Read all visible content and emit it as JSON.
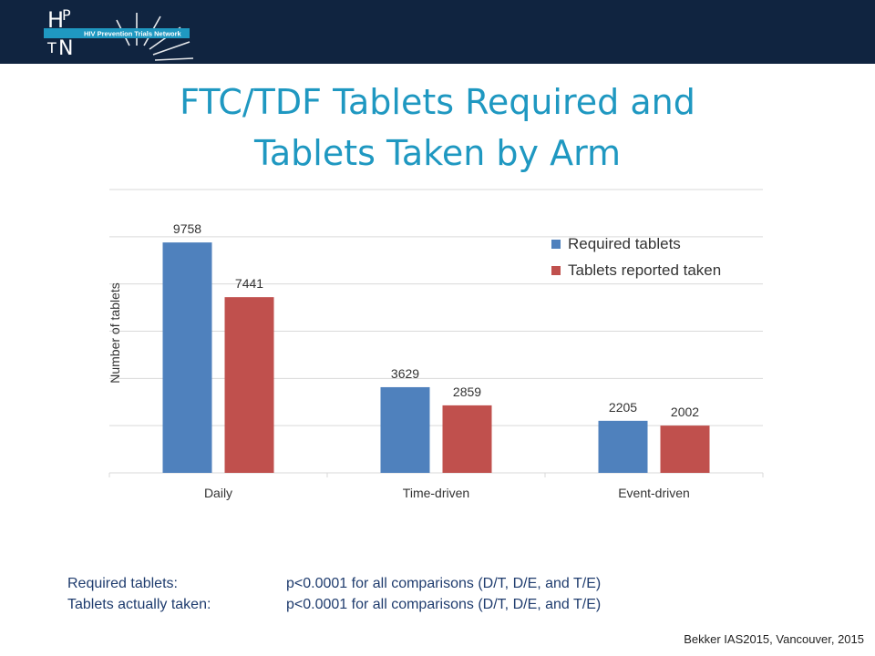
{
  "header": {
    "logo_letters": [
      "H",
      "P",
      "T",
      "N"
    ],
    "org_name": "HIV Prevention Trials Network"
  },
  "title_lines": [
    "FTC/TDF Tablets Required and",
    "Tablets Taken by Arm"
  ],
  "colors": {
    "header_bg": "#102440",
    "title": "#1f98c1",
    "required": "#4f81bd",
    "taken": "#c0504d"
  },
  "chart_data": {
    "type": "bar",
    "categories": [
      "Daily",
      "Time-driven",
      "Event-driven"
    ],
    "series": [
      {
        "name": "Required tablets",
        "values": [
          9758,
          3629,
          2205
        ]
      },
      {
        "name": "Tablets reported taken",
        "values": [
          7441,
          2859,
          2002
        ]
      }
    ],
    "ylabel": "Number of tablets",
    "ylim": [
      0,
      12000
    ],
    "ytick_step": 2000,
    "grid": true,
    "legend_position": "top-right",
    "data_labels": true
  },
  "footnotes": [
    {
      "label": "Required tablets:",
      "text": "p<0.0001 for all comparisons (D/T, D/E, and T/E)"
    },
    {
      "label": "Tablets actually taken:",
      "text": "p<0.0001 for all comparisons (D/T, D/E, and T/E)"
    }
  ],
  "citation": "Bekker IAS2015, Vancouver, 2015"
}
